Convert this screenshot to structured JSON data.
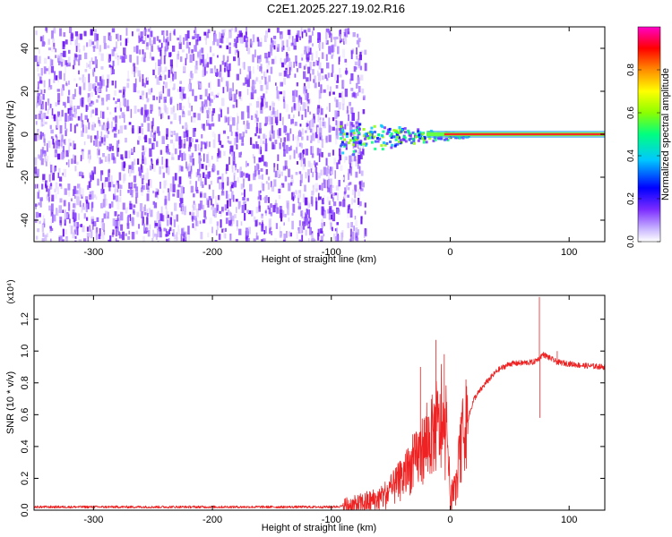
{
  "title": "C2E1.2025.227.19.02.R16",
  "chart_data": [
    {
      "type": "heatmap",
      "xlabel": "Height of straight line (km)",
      "ylabel": "Frequency (Hz)",
      "xlim": [
        -350,
        130
      ],
      "ylim": [
        -50,
        50
      ],
      "x_ticks": [
        -300,
        -200,
        -100,
        0,
        100
      ],
      "y_ticks": [
        -40,
        -20,
        0,
        20,
        40
      ],
      "noise_region_x": [
        -350,
        -78
      ],
      "noise_color": "#7b2cff",
      "signal_line_frequency": 0,
      "signal_onset_x": -95,
      "signal_line_color": "#ff2a2a",
      "colorbar": {
        "label": "Normalized spectral amplitude",
        "range": [
          0,
          1
        ],
        "ticks": [
          "0.0",
          "0.2",
          "0.4",
          "0.6",
          "0.8"
        ],
        "tick_values": [
          0,
          0.2,
          0.4,
          0.6,
          0.8
        ],
        "colors": [
          "#ffffff",
          "#c8b4ff",
          "#7b2cff",
          "#0000ff",
          "#00c8ff",
          "#00ff80",
          "#8cff00",
          "#ffff00",
          "#ff8c00",
          "#ff0000",
          "#ff00c8"
        ]
      }
    },
    {
      "type": "line",
      "xlabel": "Height of straight line (km)",
      "ylabel": "SNR (10 * v/v)",
      "y_multiplier": "(x10⁴)",
      "xlim": [
        -350,
        130
      ],
      "ylim": [
        0,
        1.35
      ],
      "x_ticks": [
        -300,
        -200,
        -100,
        0,
        100
      ],
      "y_ticks": [
        "0.0",
        "0.2",
        "0.4",
        "0.6",
        "0.8",
        "1.0",
        "1.2"
      ],
      "y_tick_values": [
        0,
        0.2,
        0.4,
        0.6,
        0.8,
        1.0,
        1.2
      ],
      "color": "#ee2222",
      "keypoints": [
        [
          -350,
          0.02
        ],
        [
          -100,
          0.02
        ],
        [
          -80,
          0.03
        ],
        [
          -60,
          0.07
        ],
        [
          -50,
          0.12
        ],
        [
          -40,
          0.2
        ],
        [
          -30,
          0.3
        ],
        [
          -20,
          0.42
        ],
        [
          -10,
          0.52
        ],
        [
          -2,
          0.4
        ],
        [
          0,
          0.08
        ],
        [
          5,
          0.15
        ],
        [
          10,
          0.45
        ],
        [
          20,
          0.7
        ],
        [
          30,
          0.8
        ],
        [
          40,
          0.88
        ],
        [
          50,
          0.92
        ],
        [
          70,
          0.93
        ],
        [
          74,
          0.95
        ],
        [
          78,
          0.98
        ],
        [
          90,
          0.93
        ],
        [
          110,
          0.91
        ],
        [
          130,
          0.9
        ]
      ],
      "spikes": [
        [
          -25,
          0.9
        ],
        [
          -12,
          1.07
        ],
        [
          -5,
          0.98
        ],
        [
          75,
          1.34
        ],
        [
          75.5,
          0.58
        ],
        [
          90,
          1.0
        ]
      ]
    }
  ]
}
